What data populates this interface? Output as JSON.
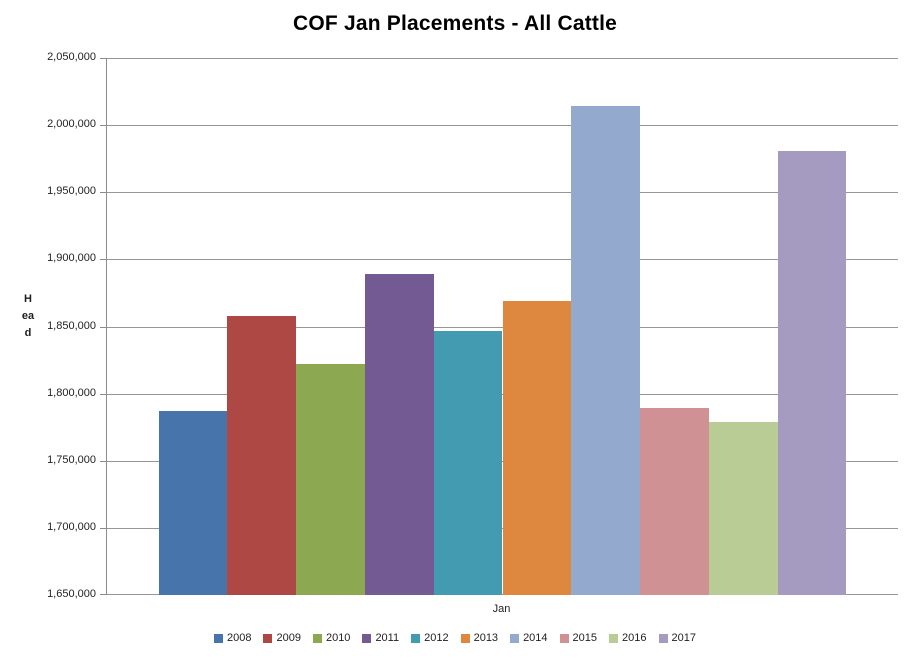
{
  "chart_data": {
    "type": "bar",
    "title": "COF Jan Placements - All Cattle",
    "ylabel": "Head",
    "xlabel": "Jan",
    "categories": [
      "Jan"
    ],
    "series": [
      {
        "name": "2008",
        "value": 1787000,
        "color": "#4774AA"
      },
      {
        "name": "2009",
        "value": 1858000,
        "color": "#AD4845"
      },
      {
        "name": "2010",
        "value": 1822000,
        "color": "#8CA850"
      },
      {
        "name": "2011",
        "value": 1889000,
        "color": "#735A92"
      },
      {
        "name": "2012",
        "value": 1847000,
        "color": "#439BB2"
      },
      {
        "name": "2013",
        "value": 1869000,
        "color": "#DE873F"
      },
      {
        "name": "2014",
        "value": 2014000,
        "color": "#93A9CE"
      },
      {
        "name": "2015",
        "value": 1789000,
        "color": "#CF9193"
      },
      {
        "name": "2016",
        "value": 1779000,
        "color": "#BACC96"
      },
      {
        "name": "2017",
        "value": 1981000,
        "color": "#A59AC0"
      }
    ],
    "ylim": [
      1650000,
      2050000
    ],
    "ytick_step": 50000,
    "grid": true,
    "legend_position": "bottom",
    "axis_color": "#8C8C8C",
    "gridline_color": "#969696"
  }
}
